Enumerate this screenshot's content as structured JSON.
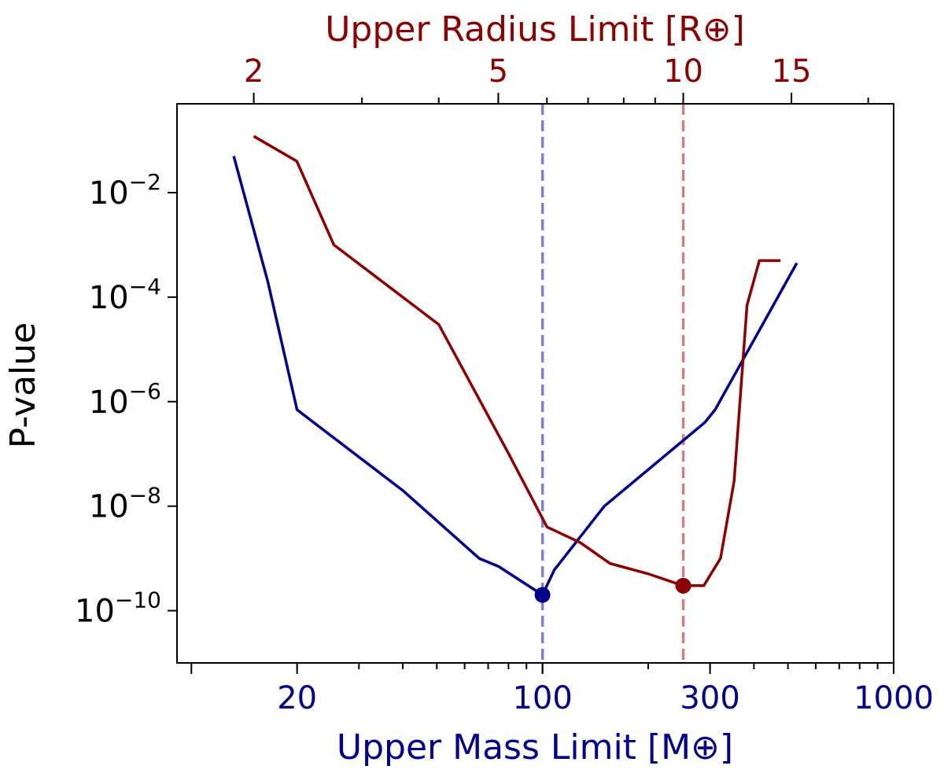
{
  "chart_data": {
    "type": "line",
    "ylabel": "P-value",
    "yscale": "log",
    "ylim_exponent": [
      -11,
      -0.3
    ],
    "y_ticks": [
      {
        "exp": -2,
        "base": "10",
        "sup": "−2"
      },
      {
        "exp": -4,
        "base": "10",
        "sup": "−4"
      },
      {
        "exp": -6,
        "base": "10",
        "sup": "−6"
      },
      {
        "exp": -8,
        "base": "10",
        "sup": "−8"
      },
      {
        "exp": -10,
        "base": "10",
        "sup": "−10"
      }
    ],
    "x_bottom": {
      "label": "Upper Mass Limit [M⊕]",
      "color": "#00008b",
      "scale": "log",
      "range": [
        9.1,
        1000
      ],
      "ticks": [
        {
          "value": 20,
          "label": "20"
        },
        {
          "value": 100,
          "label": "100"
        },
        {
          "value": 300,
          "label": "300"
        },
        {
          "value": 1000,
          "label": "1000"
        }
      ]
    },
    "x_top": {
      "label": "Upper Radius Limit [R⊕]",
      "color": "#8b0000",
      "scale": "log",
      "range": [
        1.5,
        22
      ],
      "ticks": [
        {
          "value": 2,
          "label": "2"
        },
        {
          "value": 5,
          "label": "5"
        },
        {
          "value": 10,
          "label": "10"
        },
        {
          "value": 15,
          "label": "15"
        }
      ]
    },
    "series": [
      {
        "name": "mass",
        "axis": "bottom",
        "color": "#00008b",
        "x": [
          13.2,
          16.5,
          20,
          40,
          66,
          75,
          100,
          108,
          150,
          290,
          310,
          530
        ],
        "y": [
          0.05,
          0.0002,
          7e-07,
          2e-08,
          1e-09,
          7e-10,
          2e-10,
          6e-10,
          1e-08,
          4e-07,
          7e-07,
          0.00045
        ]
      },
      {
        "name": "radius",
        "axis": "top",
        "color": "#8b0000",
        "x": [
          2.0,
          2.35,
          2.7,
          4.0,
          5.2,
          6.0,
          6.8,
          7.6,
          8.8,
          10.0,
          10.8,
          11.5,
          12.1,
          12.7,
          13.3,
          14.4
        ],
        "y": [
          0.12,
          0.04,
          0.001,
          3e-05,
          1e-07,
          4e-09,
          2e-09,
          8e-10,
          5e-10,
          3e-10,
          3e-10,
          1e-09,
          3e-08,
          7e-05,
          0.0005,
          0.0005
        ]
      }
    ],
    "reference_lines": [
      {
        "axis": "bottom",
        "value": 100,
        "color": "#7f80c8"
      },
      {
        "axis": "top",
        "value": 10,
        "color": "#d08080"
      }
    ],
    "markers": [
      {
        "axis": "bottom",
        "x": 100,
        "y": 2e-10,
        "color": "#00008b"
      },
      {
        "axis": "top",
        "x": 10,
        "y": 3e-10,
        "color": "#8b0000"
      }
    ]
  }
}
